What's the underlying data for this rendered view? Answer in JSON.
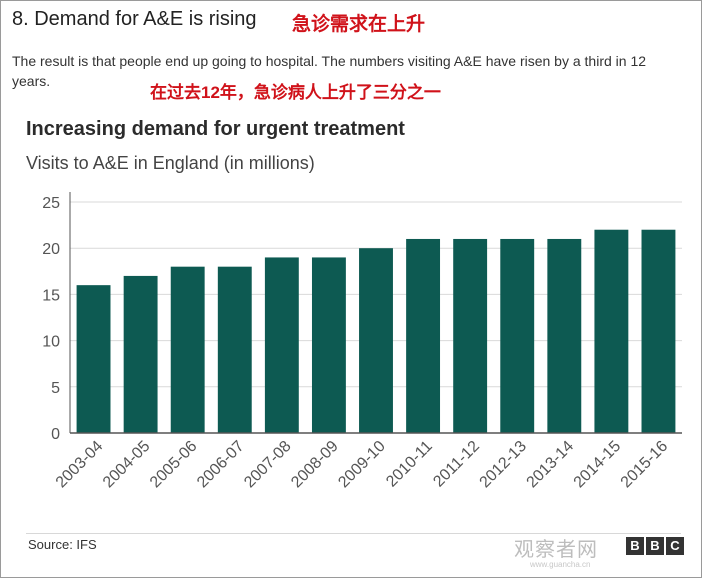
{
  "article": {
    "heading": "8. Demand for A&E is rising",
    "heading_cn": "急诊需求在上升",
    "intro": "The result is that people end up going to hospital. The numbers visiting A&E have risen by a third in 12 years.",
    "intro_cn": "在过去12年，急诊病人上升了三分之一"
  },
  "chart_data": {
    "type": "bar",
    "title": "Increasing demand for urgent treatment",
    "subtitle": "Visits to A&E in England (in millions)",
    "categories": [
      "2003-04",
      "2004-05",
      "2005-06",
      "2006-07",
      "2007-08",
      "2008-09",
      "2009-10",
      "2010-11",
      "2011-12",
      "2012-13",
      "2013-14",
      "2014-15",
      "2015-16"
    ],
    "values": [
      16,
      17,
      18,
      18,
      19,
      19,
      20,
      21,
      21,
      21,
      21,
      22,
      22
    ],
    "ylim": [
      0,
      25
    ],
    "yticks": [
      0,
      5,
      10,
      15,
      20,
      25
    ],
    "grid": true,
    "bar_color": "#0d5a52",
    "xlabel": "",
    "ylabel": ""
  },
  "footer": {
    "source": "Source: IFS",
    "watermark": "观察者网",
    "watermark_url": "www.guancha.cn",
    "logo": [
      "B",
      "B",
      "C"
    ]
  }
}
